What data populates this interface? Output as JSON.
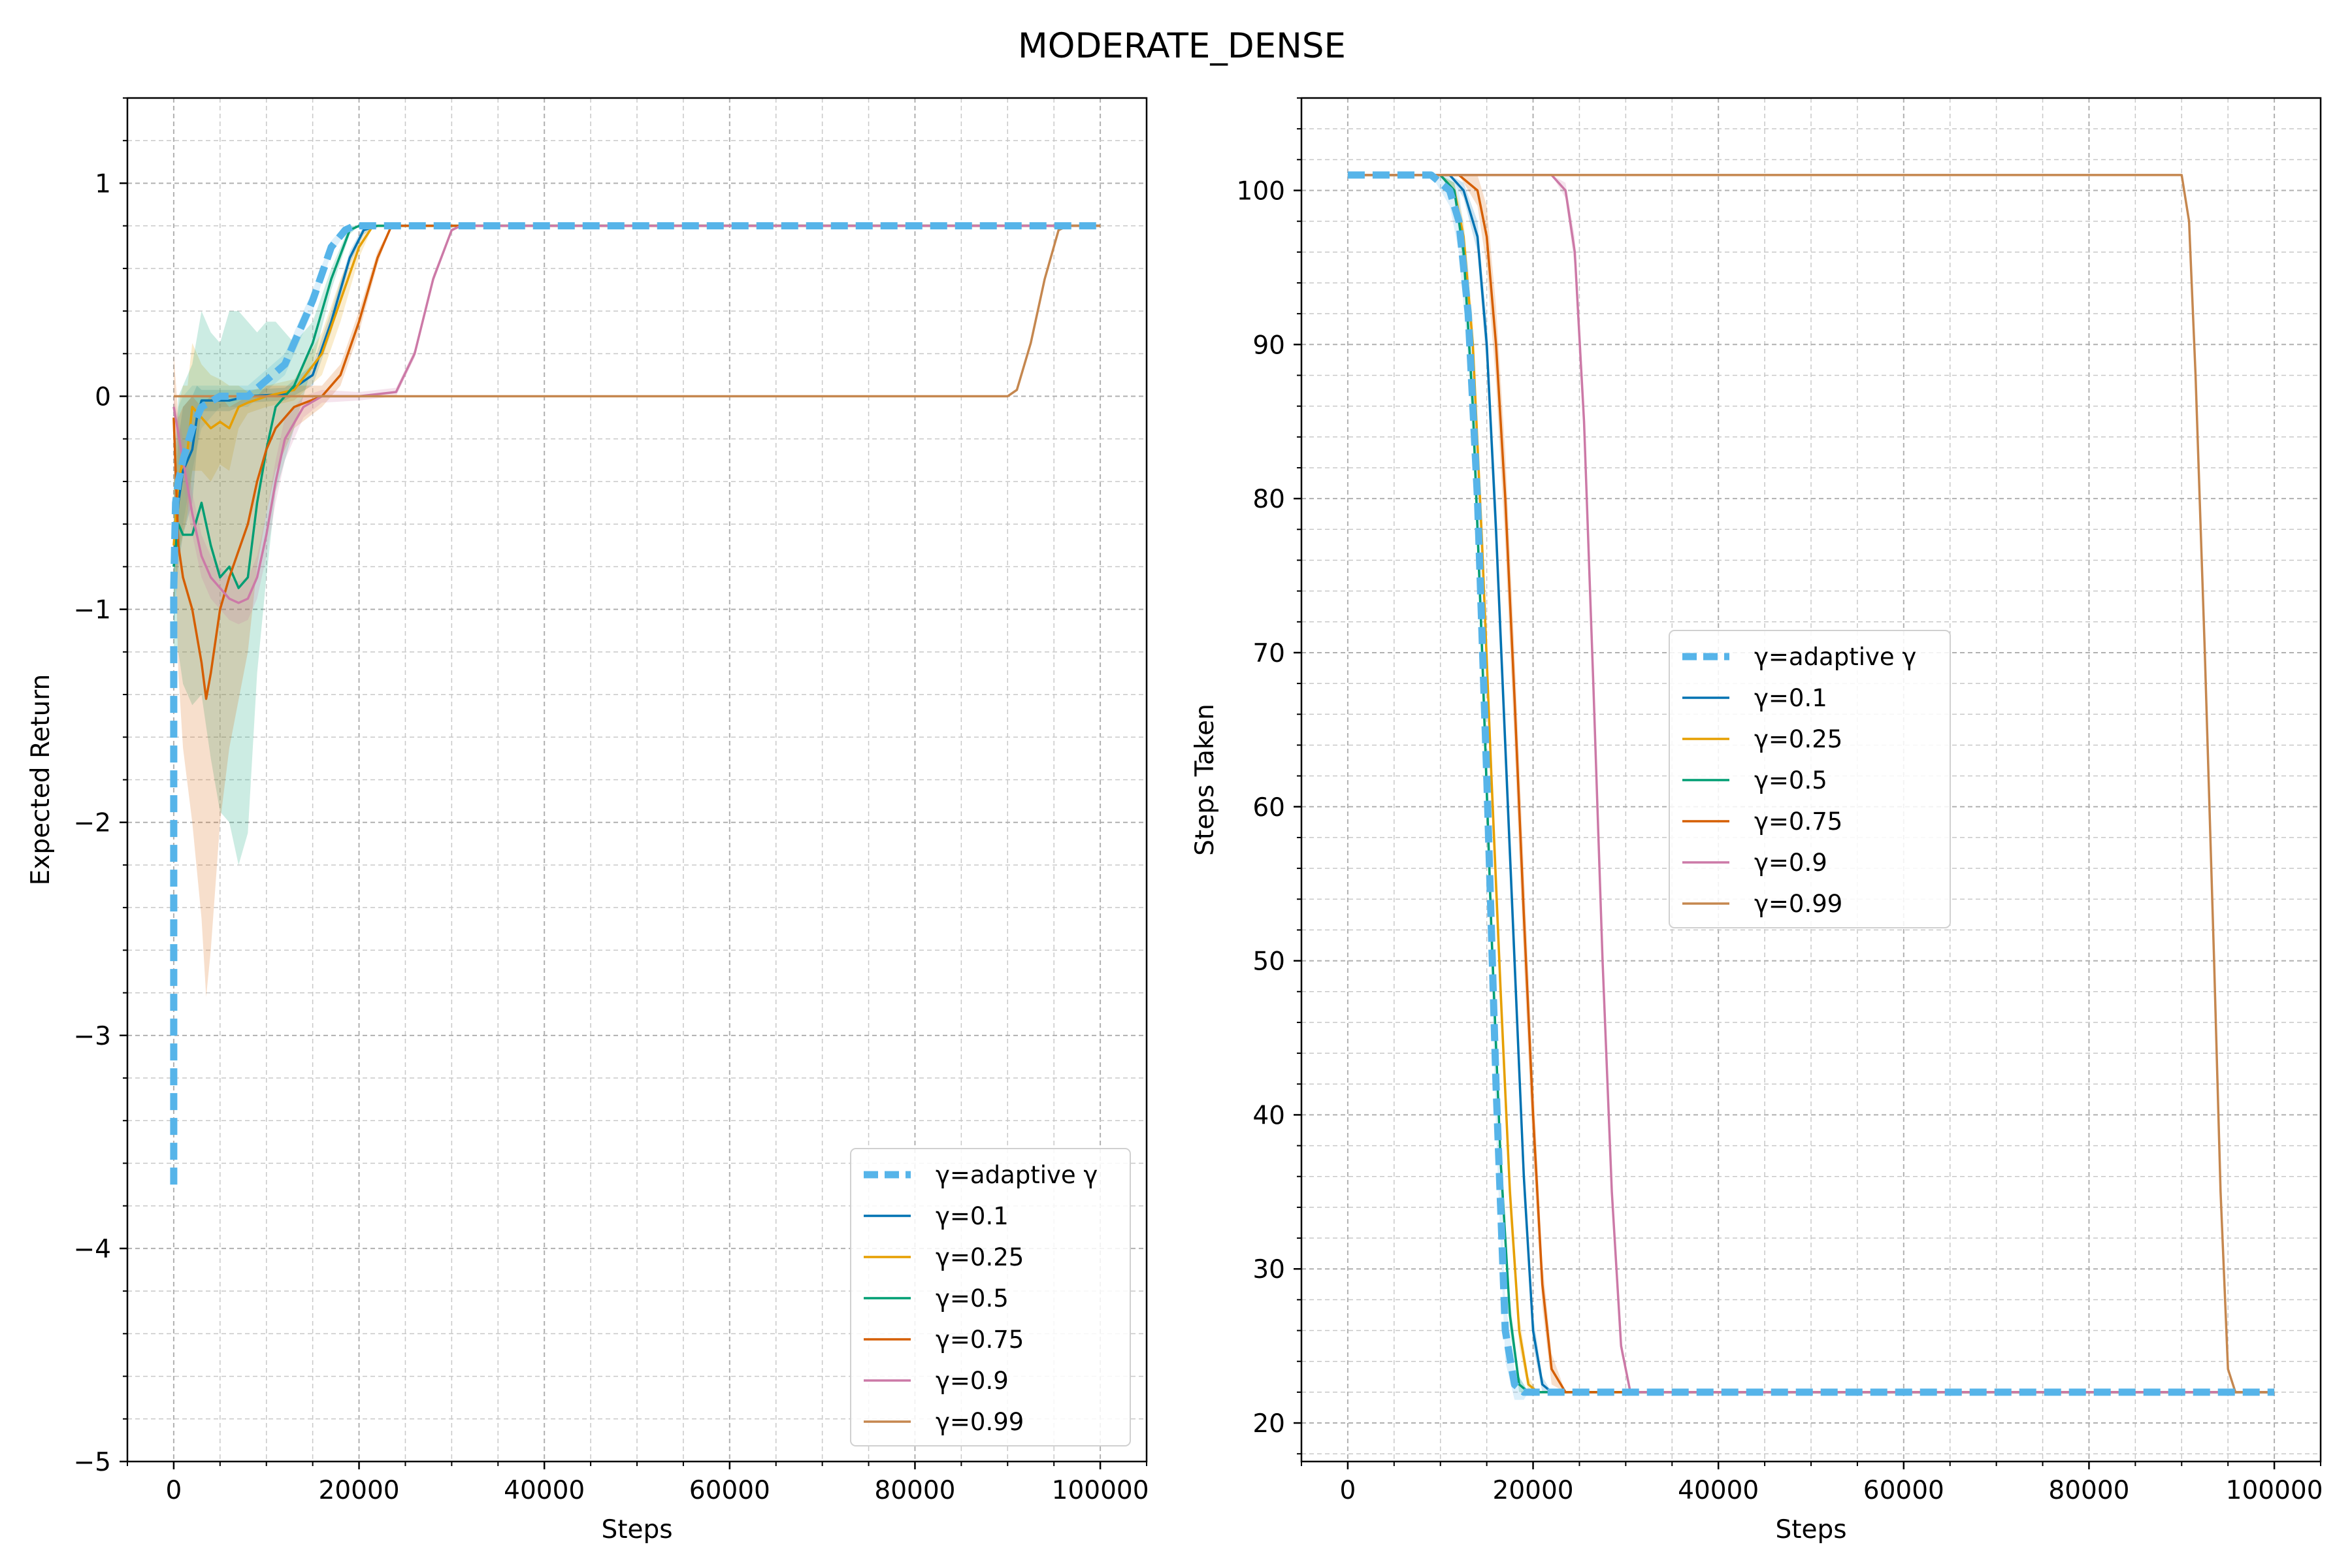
{
  "figure": {
    "title": "MODERATE_DENSE"
  },
  "chart_data": [
    {
      "type": "line",
      "title": "",
      "xlabel": "Steps",
      "ylabel": "Expected Return",
      "xlim": [
        -5000,
        105000
      ],
      "ylim": [
        -5,
        1.4
      ],
      "x_ticks": [
        0,
        20000,
        40000,
        60000,
        80000,
        100000
      ],
      "y_ticks": [
        -5,
        -4,
        -3,
        -2,
        -1,
        0,
        1
      ],
      "y_tick_labels": [
        "−5",
        "−4",
        "−3",
        "−2",
        "−1",
        "0",
        "1"
      ],
      "grid": true,
      "legend_location": "lower-right",
      "series": [
        {
          "name": "γ=adaptive γ",
          "color": "#56b4e9",
          "dashed": true,
          "x": [
            0,
            0,
            0,
            200,
            500,
            1000,
            2000,
            3000,
            5000,
            8000,
            12000,
            15000,
            17000,
            18500,
            19500,
            100000
          ],
          "y": [
            -3.7,
            -2.5,
            -0.9,
            -0.5,
            -0.4,
            -0.3,
            -0.15,
            -0.05,
            0.0,
            0.0,
            0.15,
            0.45,
            0.7,
            0.78,
            0.8,
            0.8
          ],
          "band": [
            0.0,
            0.3,
            0.25,
            0.3,
            0.35,
            0.3,
            0.2,
            0.1,
            0.05,
            0.05,
            0.05,
            0.05,
            0.03,
            0.02,
            0.0,
            0.0
          ]
        },
        {
          "name": "γ=0.1",
          "color": "#0072b2",
          "dashed": false,
          "x": [
            0,
            500,
            1000,
            2000,
            2500,
            3000,
            4000,
            6000,
            8000,
            12000,
            15000,
            17000,
            19000,
            20500,
            22000,
            100000
          ],
          "y": [
            -0.8,
            -0.5,
            -0.35,
            -0.25,
            -0.1,
            -0.02,
            -0.02,
            -0.02,
            0.0,
            0.01,
            0.1,
            0.35,
            0.65,
            0.78,
            0.8,
            0.8
          ],
          "band": [
            0.3,
            0.3,
            0.3,
            0.25,
            0.15,
            0.05,
            0.05,
            0.05,
            0.03,
            0.03,
            0.05,
            0.05,
            0.03,
            0.02,
            0.0,
            0.0
          ]
        },
        {
          "name": "γ=0.25",
          "color": "#e69f00",
          "dashed": false,
          "x": [
            0,
            500,
            1000,
            1500,
            2000,
            3000,
            4000,
            5000,
            6000,
            7000,
            8000,
            10000,
            13000,
            16000,
            18000,
            20000,
            21500,
            100000
          ],
          "y": [
            -0.7,
            -0.4,
            -0.3,
            -0.25,
            -0.05,
            -0.1,
            -0.15,
            -0.12,
            -0.15,
            -0.05,
            -0.03,
            0.0,
            0.03,
            0.2,
            0.45,
            0.7,
            0.8,
            0.8
          ],
          "band": [
            0.3,
            0.35,
            0.35,
            0.3,
            0.3,
            0.25,
            0.25,
            0.2,
            0.2,
            0.1,
            0.05,
            0.05,
            0.05,
            0.1,
            0.1,
            0.05,
            0.0,
            0.0
          ]
        },
        {
          "name": "γ=0.5",
          "color": "#009e73",
          "dashed": false,
          "x": [
            0,
            500,
            1000,
            2000,
            3000,
            4000,
            5000,
            6000,
            7000,
            8000,
            9000,
            10000,
            11000,
            13000,
            15000,
            17000,
            19000,
            20000,
            100000
          ],
          "y": [
            -0.8,
            -0.6,
            -0.65,
            -0.65,
            -0.5,
            -0.7,
            -0.85,
            -0.8,
            -0.9,
            -0.85,
            -0.5,
            -0.25,
            -0.05,
            0.05,
            0.25,
            0.55,
            0.78,
            0.8,
            0.8
          ],
          "band": [
            0.4,
            0.6,
            0.7,
            0.8,
            0.9,
            1.0,
            1.1,
            1.2,
            1.3,
            1.2,
            0.8,
            0.6,
            0.4,
            0.2,
            0.1,
            0.05,
            0.02,
            0.0,
            0.0
          ]
        },
        {
          "name": "γ=0.75",
          "color": "#d55e00",
          "dashed": false,
          "x": [
            0,
            500,
            1000,
            2000,
            3000,
            3500,
            4000,
            5000,
            6000,
            8000,
            9000,
            10000,
            11000,
            13000,
            16000,
            18000,
            20000,
            22000,
            23500,
            100000
          ],
          "y": [
            -0.1,
            -0.7,
            -0.85,
            -1.0,
            -1.25,
            -1.42,
            -1.3,
            -1.0,
            -0.85,
            -0.6,
            -0.4,
            -0.25,
            -0.15,
            -0.05,
            0.0,
            0.1,
            0.35,
            0.65,
            0.8,
            0.8
          ],
          "band": [
            0.3,
            0.6,
            0.8,
            1.0,
            1.2,
            1.4,
            1.3,
            1.0,
            0.8,
            0.6,
            0.4,
            0.3,
            0.2,
            0.1,
            0.05,
            0.05,
            0.05,
            0.03,
            0.0,
            0.0
          ]
        },
        {
          "name": "γ=0.9",
          "color": "#cc79a7",
          "dashed": false,
          "x": [
            0,
            1000,
            2000,
            3000,
            4000,
            5000,
            6000,
            7000,
            8000,
            9000,
            10000,
            11000,
            12000,
            14000,
            16000,
            20000,
            24000,
            26000,
            28000,
            30000,
            31000,
            100000
          ],
          "y": [
            -0.05,
            -0.3,
            -0.55,
            -0.75,
            -0.85,
            -0.9,
            -0.95,
            -0.97,
            -0.95,
            -0.85,
            -0.65,
            -0.4,
            -0.2,
            -0.05,
            0.0,
            0.0,
            0.02,
            0.2,
            0.55,
            0.78,
            0.8,
            0.8
          ],
          "band": [
            0.05,
            0.1,
            0.1,
            0.1,
            0.1,
            0.1,
            0.1,
            0.1,
            0.1,
            0.1,
            0.1,
            0.1,
            0.1,
            0.05,
            0.03,
            0.02,
            0.02,
            0.02,
            0.02,
            0.01,
            0.0,
            0.0
          ]
        },
        {
          "name": "γ=0.99",
          "color": "#c5874f",
          "dashed": false,
          "x": [
            0,
            90000,
            91000,
            92500,
            94000,
            95500,
            96500,
            100000
          ],
          "y": [
            0.0,
            0.0,
            0.03,
            0.25,
            0.55,
            0.78,
            0.8,
            0.8
          ],
          "band": [
            0.0,
            0.0,
            0.0,
            0.0,
            0.0,
            0.0,
            0.0,
            0.0
          ]
        }
      ]
    },
    {
      "type": "line",
      "title": "",
      "xlabel": "Steps",
      "ylabel": "Steps Taken",
      "xlim": [
        -5000,
        105000
      ],
      "ylim": [
        17.5,
        106
      ],
      "x_ticks": [
        0,
        20000,
        40000,
        60000,
        80000,
        100000
      ],
      "y_ticks": [
        20,
        30,
        40,
        50,
        60,
        70,
        80,
        90,
        100
      ],
      "y_tick_labels": [
        "20",
        "30",
        "40",
        "50",
        "60",
        "70",
        "80",
        "90",
        "100"
      ],
      "grid": true,
      "legend_location": "center",
      "series": [
        {
          "name": "γ=adaptive γ",
          "color": "#56b4e9",
          "dashed": true,
          "x": [
            0,
            9000,
            11000,
            12000,
            13000,
            14000,
            15000,
            16000,
            17000,
            18000,
            19000,
            19500,
            100000
          ],
          "y": [
            101,
            101,
            100,
            98,
            92,
            80,
            62,
            42,
            26,
            22.5,
            22,
            22,
            22
          ],
          "band": [
            0,
            0,
            1,
            2,
            3,
            3,
            3,
            3,
            2,
            1,
            0.5,
            0,
            0
          ]
        },
        {
          "name": "γ=0.1",
          "color": "#0072b2",
          "dashed": false,
          "x": [
            0,
            11000,
            12500,
            14000,
            15000,
            16000,
            17000,
            18000,
            19000,
            20000,
            21000,
            22000,
            100000
          ],
          "y": [
            101,
            101,
            100,
            97,
            90,
            78,
            64,
            50,
            36,
            26,
            22.5,
            22,
            22
          ],
          "band": [
            0,
            0,
            0.5,
            1,
            1.5,
            2,
            2,
            2,
            1.5,
            1,
            0.5,
            0,
            0
          ]
        },
        {
          "name": "γ=0.25",
          "color": "#e69f00",
          "dashed": false,
          "x": [
            0,
            10000,
            11500,
            12500,
            13500,
            14500,
            15500,
            16500,
            17500,
            18500,
            19500,
            20500,
            100000
          ],
          "y": [
            101,
            101,
            100,
            97,
            90,
            77,
            62,
            48,
            35,
            26,
            22.5,
            22,
            22
          ],
          "band": [
            0,
            0,
            0.5,
            1,
            1.5,
            2,
            2,
            2,
            1.5,
            1,
            0.5,
            0,
            0
          ]
        },
        {
          "name": "γ=0.5",
          "color": "#009e73",
          "dashed": false,
          "x": [
            0,
            10000,
            11500,
            12500,
            13500,
            14500,
            15500,
            16500,
            17500,
            18500,
            19500,
            100000
          ],
          "y": [
            101,
            101,
            100,
            96,
            86,
            70,
            52,
            37,
            27,
            22.5,
            22,
            22
          ],
          "band": [
            0,
            0,
            0.5,
            1,
            1.5,
            2,
            2,
            1.5,
            1,
            0.5,
            0,
            0
          ]
        },
        {
          "name": "γ=0.75",
          "color": "#d55e00",
          "dashed": false,
          "x": [
            0,
            12000,
            14000,
            15000,
            16000,
            17000,
            18000,
            19000,
            20000,
            21000,
            22000,
            23500,
            100000
          ],
          "y": [
            101,
            101,
            100,
            97,
            90,
            80,
            67,
            53,
            40,
            29,
            23.5,
            22,
            22
          ],
          "band": [
            0,
            0,
            1,
            2,
            2.5,
            3,
            3,
            3,
            2.5,
            1.5,
            1,
            0,
            0
          ]
        },
        {
          "name": "γ=0.9",
          "color": "#cc79a7",
          "dashed": false,
          "x": [
            0,
            22000,
            23500,
            24500,
            25500,
            26500,
            27500,
            28500,
            29500,
            30500,
            100000
          ],
          "y": [
            101,
            101,
            100,
            96,
            85,
            68,
            50,
            35,
            25,
            22,
            22
          ],
          "band": [
            0,
            0,
            0.5,
            1,
            1.5,
            1.5,
            1.5,
            1,
            0.5,
            0,
            0
          ]
        },
        {
          "name": "γ=0.99",
          "color": "#c5874f",
          "dashed": false,
          "x": [
            0,
            90000,
            90800,
            91500,
            92500,
            93500,
            94200,
            95000,
            95800,
            100000
          ],
          "y": [
            101,
            101,
            98,
            88,
            70,
            50,
            35,
            23.5,
            22,
            22
          ],
          "band": [
            0,
            0,
            0,
            0,
            0,
            0,
            0,
            0,
            0,
            0
          ]
        }
      ]
    }
  ]
}
